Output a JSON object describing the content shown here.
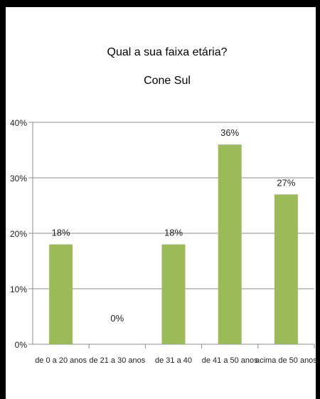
{
  "chart_data": {
    "type": "bar",
    "title": "Qual a sua faixa etária?",
    "subtitle": "Cone Sul",
    "categories": [
      "de 0 a 20 anos",
      "de 21 a 30 anos",
      "de 31 a 40",
      "de 41 a 50 anos",
      "acima de 50 anos"
    ],
    "values": [
      18,
      0,
      18,
      36,
      27
    ],
    "value_labels": [
      "18%",
      "0%",
      "18%",
      "36%",
      "27%"
    ],
    "yticks": [
      "0%",
      "10%",
      "20%",
      "30%",
      "40%"
    ],
    "ylim": [
      0,
      40
    ],
    "grid": true,
    "bar_color": "#9bbb59",
    "legend": "none"
  }
}
